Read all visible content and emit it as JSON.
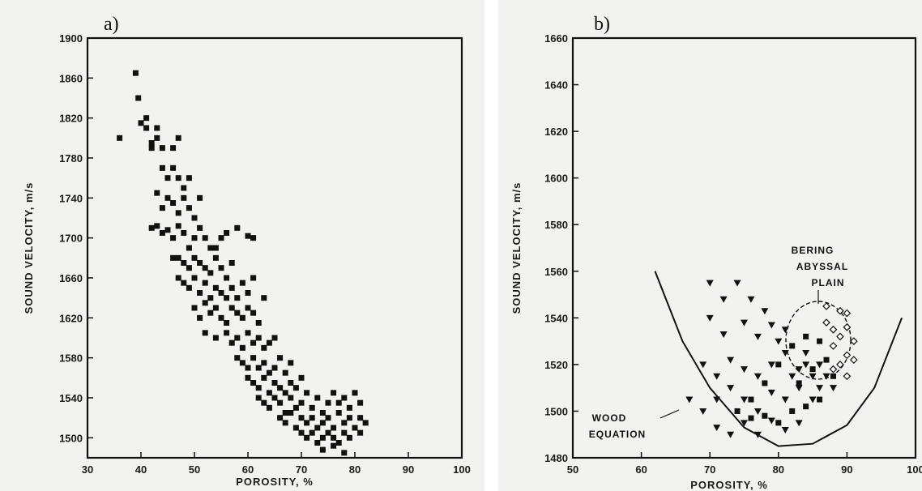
{
  "chart_data": [
    {
      "panel_label": "a)",
      "type": "scatter",
      "title": "",
      "xlabel": "POROSITY, %",
      "ylabel": "SOUND VELOCITY, m/s",
      "xlim": [
        30,
        100
      ],
      "ylim": [
        1480,
        1900
      ],
      "xticks": [
        30,
        40,
        50,
        60,
        70,
        80,
        90,
        100
      ],
      "yticks": [
        1500,
        1540,
        1580,
        1620,
        1660,
        1700,
        1740,
        1780,
        1820,
        1860,
        1900
      ],
      "grid": false,
      "series": [
        {
          "marker": "square",
          "points": [
            [
              36,
              1800
            ],
            [
              39,
              1865
            ],
            [
              39.5,
              1840
            ],
            [
              40,
              1815
            ],
            [
              41,
              1820
            ],
            [
              41,
              1810
            ],
            [
              42,
              1790
            ],
            [
              42,
              1795
            ],
            [
              43,
              1810
            ],
            [
              43,
              1800
            ],
            [
              44,
              1770
            ],
            [
              44,
              1790
            ],
            [
              45,
              1760
            ],
            [
              46,
              1790
            ],
            [
              46,
              1770
            ],
            [
              47,
              1800
            ],
            [
              47,
              1760
            ],
            [
              48,
              1750
            ],
            [
              49,
              1760
            ],
            [
              43,
              1745
            ],
            [
              44,
              1730
            ],
            [
              45,
              1740
            ],
            [
              46,
              1735
            ],
            [
              47,
              1725
            ],
            [
              48,
              1740
            ],
            [
              49,
              1730
            ],
            [
              50,
              1720
            ],
            [
              51,
              1740
            ],
            [
              42,
              1710
            ],
            [
              43,
              1712
            ],
            [
              44,
              1705
            ],
            [
              45,
              1708
            ],
            [
              46,
              1700
            ],
            [
              47,
              1712
            ],
            [
              48,
              1705
            ],
            [
              49,
              1690
            ],
            [
              50,
              1700
            ],
            [
              51,
              1710
            ],
            [
              52,
              1700
            ],
            [
              53,
              1690
            ],
            [
              54,
              1690
            ],
            [
              55,
              1700
            ],
            [
              56,
              1705
            ],
            [
              58,
              1710
            ],
            [
              60,
              1702
            ],
            [
              61,
              1700
            ],
            [
              46,
              1680
            ],
            [
              47,
              1680
            ],
            [
              48,
              1675
            ],
            [
              49,
              1670
            ],
            [
              50,
              1680
            ],
            [
              51,
              1675
            ],
            [
              52,
              1670
            ],
            [
              53,
              1665
            ],
            [
              54,
              1680
            ],
            [
              55,
              1670
            ],
            [
              56,
              1660
            ],
            [
              57,
              1675
            ],
            [
              47,
              1660
            ],
            [
              48,
              1655
            ],
            [
              49,
              1650
            ],
            [
              50,
              1660
            ],
            [
              51,
              1645
            ],
            [
              52,
              1655
            ],
            [
              53,
              1640
            ],
            [
              54,
              1650
            ],
            [
              55,
              1645
            ],
            [
              56,
              1640
            ],
            [
              57,
              1650
            ],
            [
              58,
              1640
            ],
            [
              59,
              1655
            ],
            [
              60,
              1645
            ],
            [
              61,
              1660
            ],
            [
              50,
              1630
            ],
            [
              51,
              1620
            ],
            [
              52,
              1635
            ],
            [
              53,
              1625
            ],
            [
              54,
              1630
            ],
            [
              55,
              1620
            ],
            [
              56,
              1615
            ],
            [
              57,
              1630
            ],
            [
              58,
              1625
            ],
            [
              59,
              1620
            ],
            [
              60,
              1630
            ],
            [
              61,
              1625
            ],
            [
              62,
              1615
            ],
            [
              63,
              1640
            ],
            [
              52,
              1605
            ],
            [
              54,
              1600
            ],
            [
              56,
              1605
            ],
            [
              57,
              1595
            ],
            [
              58,
              1600
            ],
            [
              59,
              1590
            ],
            [
              60,
              1605
            ],
            [
              61,
              1595
            ],
            [
              62,
              1600
            ],
            [
              63,
              1590
            ],
            [
              64,
              1595
            ],
            [
              65,
              1600
            ],
            [
              58,
              1580
            ],
            [
              59,
              1575
            ],
            [
              60,
              1570
            ],
            [
              61,
              1580
            ],
            [
              62,
              1570
            ],
            [
              63,
              1575
            ],
            [
              64,
              1565
            ],
            [
              65,
              1570
            ],
            [
              66,
              1580
            ],
            [
              67,
              1565
            ],
            [
              68,
              1575
            ],
            [
              60,
              1560
            ],
            [
              61,
              1555
            ],
            [
              62,
              1550
            ],
            [
              63,
              1560
            ],
            [
              64,
              1545
            ],
            [
              65,
              1555
            ],
            [
              66,
              1550
            ],
            [
              67,
              1545
            ],
            [
              68,
              1555
            ],
            [
              69,
              1550
            ],
            [
              70,
              1560
            ],
            [
              62,
              1540
            ],
            [
              63,
              1535
            ],
            [
              64,
              1530
            ],
            [
              65,
              1540
            ],
            [
              66,
              1535
            ],
            [
              67,
              1525
            ],
            [
              68,
              1540
            ],
            [
              69,
              1530
            ],
            [
              70,
              1535
            ],
            [
              71,
              1545
            ],
            [
              72,
              1530
            ],
            [
              73,
              1540
            ],
            [
              74,
              1525
            ],
            [
              75,
              1535
            ],
            [
              76,
              1545
            ],
            [
              77,
              1535
            ],
            [
              78,
              1540
            ],
            [
              79,
              1530
            ],
            [
              80,
              1545
            ],
            [
              81,
              1535
            ],
            [
              66,
              1520
            ],
            [
              67,
              1515
            ],
            [
              68,
              1525
            ],
            [
              69,
              1510
            ],
            [
              70,
              1520
            ],
            [
              71,
              1515
            ],
            [
              72,
              1520
            ],
            [
              73,
              1510
            ],
            [
              74,
              1515
            ],
            [
              75,
              1520
            ],
            [
              76,
              1510
            ],
            [
              77,
              1525
            ],
            [
              78,
              1515
            ],
            [
              79,
              1520
            ],
            [
              80,
              1510
            ],
            [
              81,
              1520
            ],
            [
              82,
              1515
            ],
            [
              70,
              1505
            ],
            [
              71,
              1500
            ],
            [
              72,
              1505
            ],
            [
              73,
              1495
            ],
            [
              74,
              1500
            ],
            [
              75,
              1505
            ],
            [
              76,
              1500
            ],
            [
              77,
              1495
            ],
            [
              78,
              1505
            ],
            [
              79,
              1500
            ],
            [
              80,
              1510
            ],
            [
              81,
              1505
            ],
            [
              74,
              1488
            ],
            [
              76,
              1492
            ],
            [
              78,
              1485
            ]
          ]
        }
      ]
    },
    {
      "panel_label": "b)",
      "type": "scatter",
      "title": "",
      "xlabel": "POROSITY, %",
      "ylabel": "SOUND VELOCITY, m/s",
      "xlim": [
        50,
        100
      ],
      "ylim": [
        1480,
        1660
      ],
      "xticks": [
        50,
        60,
        70,
        80,
        90,
        100
      ],
      "yticks": [
        1480,
        1500,
        1520,
        1540,
        1560,
        1580,
        1600,
        1620,
        1640,
        1660
      ],
      "grid": false,
      "annotations": [
        {
          "text_lines": [
            "BERING",
            "ABYSSAL",
            "PLAIN"
          ],
          "x": 88,
          "y": 1558
        },
        {
          "text_lines": [
            "WOOD",
            "EQUATION"
          ],
          "x": 59,
          "y": 1490
        }
      ],
      "series": [
        {
          "marker": "triangle-down",
          "points": [
            [
              70,
              1555
            ],
            [
              72,
              1548
            ],
            [
              74,
              1555
            ],
            [
              76,
              1548
            ],
            [
              78,
              1543
            ],
            [
              70,
              1540
            ],
            [
              72,
              1533
            ],
            [
              75,
              1538
            ],
            [
              77,
              1532
            ],
            [
              79,
              1537
            ],
            [
              80,
              1530
            ],
            [
              81,
              1535
            ],
            [
              69,
              1520
            ],
            [
              71,
              1515
            ],
            [
              73,
              1522
            ],
            [
              75,
              1518
            ],
            [
              77,
              1515
            ],
            [
              79,
              1520
            ],
            [
              81,
              1525
            ],
            [
              83,
              1518
            ],
            [
              67,
              1505
            ],
            [
              69,
              1500
            ],
            [
              71,
              1505
            ],
            [
              73,
              1510
            ],
            [
              75,
              1505
            ],
            [
              77,
              1500
            ],
            [
              79,
              1508
            ],
            [
              81,
              1505
            ],
            [
              83,
              1510
            ],
            [
              85,
              1505
            ],
            [
              71,
              1493
            ],
            [
              73,
              1490
            ],
            [
              75,
              1495
            ],
            [
              77,
              1490
            ],
            [
              79,
              1496
            ],
            [
              81,
              1492
            ],
            [
              83,
              1495
            ],
            [
              82,
              1515
            ],
            [
              84,
              1520
            ],
            [
              85,
              1515
            ],
            [
              86,
              1520
            ],
            [
              87,
              1515
            ],
            [
              84,
              1525
            ],
            [
              86,
              1510
            ],
            [
              88,
              1510
            ]
          ]
        },
        {
          "marker": "square",
          "points": [
            [
              74,
              1500
            ],
            [
              76,
              1497
            ],
            [
              78,
              1498
            ],
            [
              80,
              1495
            ],
            [
              82,
              1500
            ],
            [
              84,
              1502
            ],
            [
              86,
              1505
            ],
            [
              83,
              1512
            ],
            [
              85,
              1518
            ],
            [
              87,
              1522
            ],
            [
              88,
              1515
            ],
            [
              86,
              1530
            ],
            [
              84,
              1532
            ],
            [
              82,
              1528
            ],
            [
              80,
              1520
            ],
            [
              78,
              1512
            ],
            [
              76,
              1505
            ]
          ]
        },
        {
          "marker": "diamond-open",
          "points": [
            [
              87,
              1538
            ],
            [
              88,
              1535
            ],
            [
              89,
              1532
            ],
            [
              90,
              1536
            ],
            [
              91,
              1530
            ],
            [
              88,
              1528
            ],
            [
              90,
              1524
            ],
            [
              89,
              1520
            ],
            [
              91,
              1522
            ],
            [
              87,
              1545
            ],
            [
              89,
              1543
            ],
            [
              90,
              1542
            ],
            [
              88,
              1518
            ],
            [
              90,
              1515
            ]
          ]
        }
      ]
    }
  ]
}
